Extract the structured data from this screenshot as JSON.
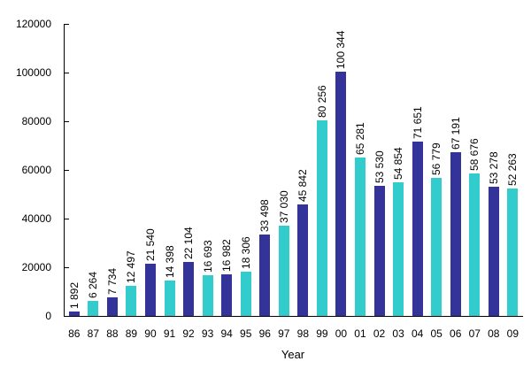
{
  "chart_data": {
    "type": "bar",
    "title": "",
    "xlabel": "Year",
    "ylabel": "",
    "ylim": [
      0,
      120000
    ],
    "yticks": [
      0,
      20000,
      40000,
      60000,
      80000,
      100000,
      120000
    ],
    "grid": false,
    "legend": "none",
    "categories": [
      "86",
      "87",
      "88",
      "89",
      "90",
      "91",
      "92",
      "93",
      "94",
      "95",
      "96",
      "97",
      "98",
      "99",
      "00",
      "01",
      "02",
      "03",
      "04",
      "05",
      "06",
      "07",
      "08",
      "09"
    ],
    "values": [
      1892,
      6264,
      7734,
      12497,
      21540,
      14398,
      22104,
      16693,
      16982,
      18306,
      33498,
      37030,
      45842,
      80256,
      100344,
      65281,
      53530,
      54854,
      71651,
      56779,
      67191,
      58676,
      53278,
      52263
    ],
    "value_labels": [
      "1 892",
      "6 264",
      "7 734",
      "12 497",
      "21 540",
      "14 398",
      "22 104",
      "16 693",
      "16 982",
      "18 306",
      "33 498",
      "37 030",
      "45 842",
      "80 256",
      "100 344",
      "65 281",
      "53 530",
      "54 854",
      "71 651",
      "56 779",
      "67 191",
      "58 676",
      "53 278",
      "52 263"
    ],
    "colors": {
      "bar_even_index": "#333399",
      "bar_odd_index": "#33CCCC",
      "axis": "#000000",
      "text": "#000000",
      "background": "#FFFFFF"
    }
  }
}
